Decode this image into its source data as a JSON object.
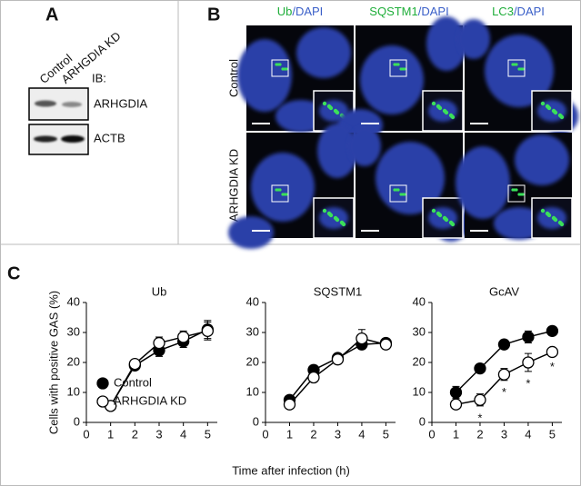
{
  "panel_labels": [
    "A",
    "B",
    "C"
  ],
  "blot": {
    "lanes": [
      "Control",
      "ARHGDIA KD"
    ],
    "ib_label": "IB:",
    "proteins": [
      "ARHGDIA",
      "ACTB"
    ]
  },
  "microscopy": {
    "columns": [
      {
        "marker": "Ub",
        "counterstain": "/DAPI"
      },
      {
        "marker": "SQSTM1",
        "counterstain": "/DAPI"
      },
      {
        "marker": "LC3",
        "counterstain": "/DAPI"
      }
    ],
    "rows": [
      "Control",
      "ARHGDIA KD"
    ]
  },
  "chart_data": [
    {
      "type": "line",
      "title": "Ub",
      "ylabel": "Cells with positive GAS (%)",
      "xlim": [
        0,
        5.4
      ],
      "xticks": [
        0,
        1,
        2,
        3,
        4,
        5
      ],
      "ylim": [
        0,
        40
      ],
      "yticks": [
        0,
        10,
        20,
        30,
        40
      ],
      "x": [
        1,
        2,
        3,
        4,
        5
      ],
      "legend": "lower right",
      "series": [
        {
          "name": "Control",
          "color": "#000000",
          "values": [
            5.5,
            19,
            24,
            27,
            31
          ],
          "errors": [
            1,
            1,
            2,
            2,
            3
          ]
        },
        {
          "name": "ARHGDIA KD",
          "color": "#ffffff",
          "values": [
            5.5,
            19.5,
            26.5,
            28.5,
            30.5
          ],
          "errors": [
            1,
            1,
            2,
            2,
            3
          ]
        }
      ]
    },
    {
      "type": "line",
      "title": "SQSTM1",
      "xlabel": "Time after infection (h)",
      "xlim": [
        0,
        5.4
      ],
      "xticks": [
        0,
        1,
        2,
        3,
        4,
        5
      ],
      "ylim": [
        0,
        40
      ],
      "yticks": [
        0,
        10,
        20,
        30,
        40
      ],
      "x": [
        1,
        2,
        3,
        4,
        5
      ],
      "series": [
        {
          "color": "#000000",
          "values": [
            7.5,
            17.5,
            21.5,
            26,
            26.5
          ],
          "errors": [
            1,
            1.5,
            1.5,
            1.5,
            1.5
          ]
        },
        {
          "color": "#ffffff",
          "values": [
            6,
            15,
            21,
            28,
            26
          ],
          "errors": [
            1,
            1.5,
            1.5,
            3,
            1.5
          ]
        }
      ]
    },
    {
      "type": "line",
      "title": "GcAV",
      "xlim": [
        0,
        5.4
      ],
      "xticks": [
        0,
        1,
        2,
        3,
        4,
        5
      ],
      "ylim": [
        0,
        40
      ],
      "yticks": [
        0,
        10,
        20,
        30,
        40
      ],
      "x": [
        1,
        2,
        3,
        4,
        5
      ],
      "series": [
        {
          "color": "#000000",
          "values": [
            10,
            18,
            26,
            28.5,
            30.5
          ],
          "errors": [
            2,
            1.5,
            1.5,
            2,
            1.5
          ]
        },
        {
          "color": "#ffffff",
          "values": [
            6,
            7.5,
            16,
            20,
            23.5
          ],
          "errors": [
            1,
            2,
            2,
            3,
            1
          ]
        }
      ],
      "annotations": [
        {
          "x": 2,
          "text": "*"
        },
        {
          "x": 3,
          "text": "*"
        },
        {
          "x": 4,
          "text": "*"
        },
        {
          "x": 5,
          "text": "*"
        }
      ]
    }
  ]
}
